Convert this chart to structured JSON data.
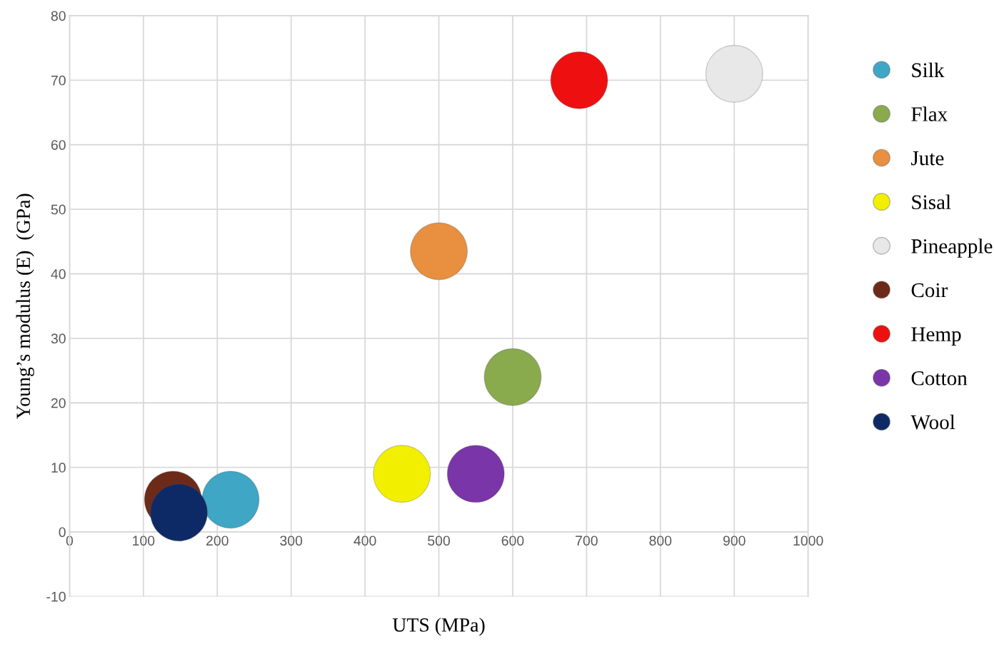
{
  "chart_data": {
    "type": "scatter",
    "xlabel": "UTS (MPa)",
    "ylabel": "Young’s modulus (E)  (GPa)",
    "xlim": [
      0,
      1000
    ],
    "ylim": [
      -10,
      80
    ],
    "xticks": [
      0,
      100,
      200,
      300,
      400,
      500,
      600,
      700,
      800,
      900,
      1000
    ],
    "yticks": [
      -10,
      0,
      10,
      20,
      30,
      40,
      50,
      60,
      70,
      80
    ],
    "grid": true,
    "legend": "right",
    "marker": "circle",
    "series": [
      {
        "name": "Silk",
        "color": "#3fa6c6",
        "x": [
          218
        ],
        "values": [
          5
        ]
      },
      {
        "name": "Flax",
        "color": "#8aaa4e",
        "x": [
          600
        ],
        "values": [
          24
        ]
      },
      {
        "name": "Jute",
        "color": "#e89040",
        "x": [
          500
        ],
        "values": [
          43.5
        ]
      },
      {
        "name": "Sisal",
        "color": "#f2f000",
        "x": [
          450
        ],
        "values": [
          9
        ]
      },
      {
        "name": "Pineapple",
        "color": "#e8e8e8",
        "x": [
          900
        ],
        "values": [
          71
        ]
      },
      {
        "name": "Coir",
        "color": "#6e2a18",
        "x": [
          140
        ],
        "values": [
          5
        ]
      },
      {
        "name": "Hemp",
        "color": "#ee1010",
        "x": [
          690
        ],
        "values": [
          70
        ]
      },
      {
        "name": "Cotton",
        "color": "#7a35a8",
        "x": [
          550
        ],
        "values": [
          9
        ]
      },
      {
        "name": "Wool",
        "color": "#0e2a66",
        "x": [
          148
        ],
        "values": [
          3
        ]
      }
    ]
  }
}
